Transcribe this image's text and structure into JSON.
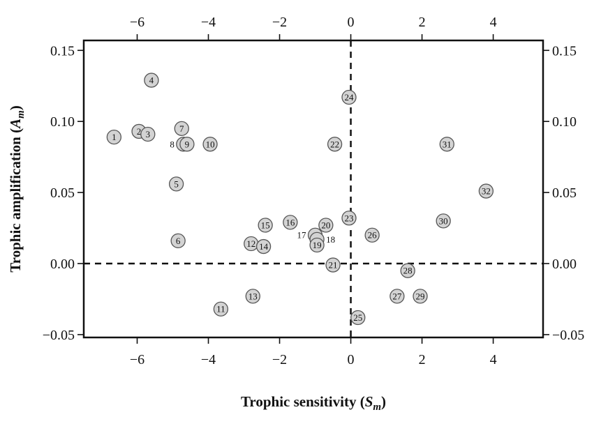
{
  "chart_data": {
    "type": "scatter",
    "title": "",
    "xlabel": {
      "main": "Trophic sensitivity (",
      "sym": "S",
      "sub": "m",
      "close": ")"
    },
    "ylabel": {
      "main": "Trophic amplification (",
      "sym": "A",
      "sub": "m",
      "close": ")"
    },
    "xlim": [
      -7.5,
      5.4
    ],
    "ylim": [
      -0.052,
      0.157
    ],
    "x_ticks": [
      -6,
      -4,
      -2,
      0,
      2,
      4
    ],
    "x_tick_labels": [
      "−6",
      "−4",
      "−2",
      "0",
      "2",
      "4"
    ],
    "y_ticks": [
      -0.05,
      0.0,
      0.05,
      0.1,
      0.15
    ],
    "y_tick_labels": [
      "−0.05",
      "0.00",
      "0.05",
      "0.10",
      "0.15"
    ],
    "reference_lines": {
      "x": 0,
      "y": 0,
      "style": "dashed"
    },
    "grid": false,
    "points": [
      {
        "label": "1",
        "x": -6.65,
        "y": 0.089
      },
      {
        "label": "2",
        "x": -5.95,
        "y": 0.093
      },
      {
        "label": "3",
        "x": -5.7,
        "y": 0.091
      },
      {
        "label": "4",
        "x": -5.6,
        "y": 0.129
      },
      {
        "label": "5",
        "x": -4.9,
        "y": 0.056
      },
      {
        "label": "6",
        "x": -4.85,
        "y": 0.016
      },
      {
        "label": "7",
        "x": -4.75,
        "y": 0.095
      },
      {
        "label": "8",
        "x": -4.7,
        "y": 0.084,
        "label_side": "left"
      },
      {
        "label": "9",
        "x": -4.6,
        "y": 0.084
      },
      {
        "label": "10",
        "x": -3.95,
        "y": 0.084
      },
      {
        "label": "11",
        "x": -3.65,
        "y": -0.032
      },
      {
        "label": "12",
        "x": -2.8,
        "y": 0.014
      },
      {
        "label": "13",
        "x": -2.75,
        "y": -0.023
      },
      {
        "label": "14",
        "x": -2.45,
        "y": 0.012
      },
      {
        "label": "15",
        "x": -2.4,
        "y": 0.027
      },
      {
        "label": "16",
        "x": -1.7,
        "y": 0.029
      },
      {
        "label": "17",
        "x": -1.0,
        "y": 0.02,
        "label_side": "left"
      },
      {
        "label": "18",
        "x": -0.95,
        "y": 0.017,
        "label_side": "right"
      },
      {
        "label": "19",
        "x": -0.95,
        "y": 0.013
      },
      {
        "label": "20",
        "x": -0.7,
        "y": 0.027
      },
      {
        "label": "21",
        "x": -0.5,
        "y": -0.001
      },
      {
        "label": "22",
        "x": -0.45,
        "y": 0.084
      },
      {
        "label": "23",
        "x": -0.05,
        "y": 0.032
      },
      {
        "label": "24",
        "x": -0.05,
        "y": 0.117
      },
      {
        "label": "25",
        "x": 0.2,
        "y": -0.038
      },
      {
        "label": "26",
        "x": 0.6,
        "y": 0.02
      },
      {
        "label": "27",
        "x": 1.3,
        "y": -0.023
      },
      {
        "label": "28",
        "x": 1.6,
        "y": -0.005
      },
      {
        "label": "29",
        "x": 1.95,
        "y": -0.023
      },
      {
        "label": "30",
        "x": 2.6,
        "y": 0.03
      },
      {
        "label": "31",
        "x": 2.7,
        "y": 0.084
      },
      {
        "label": "32",
        "x": 3.8,
        "y": 0.051
      }
    ]
  }
}
